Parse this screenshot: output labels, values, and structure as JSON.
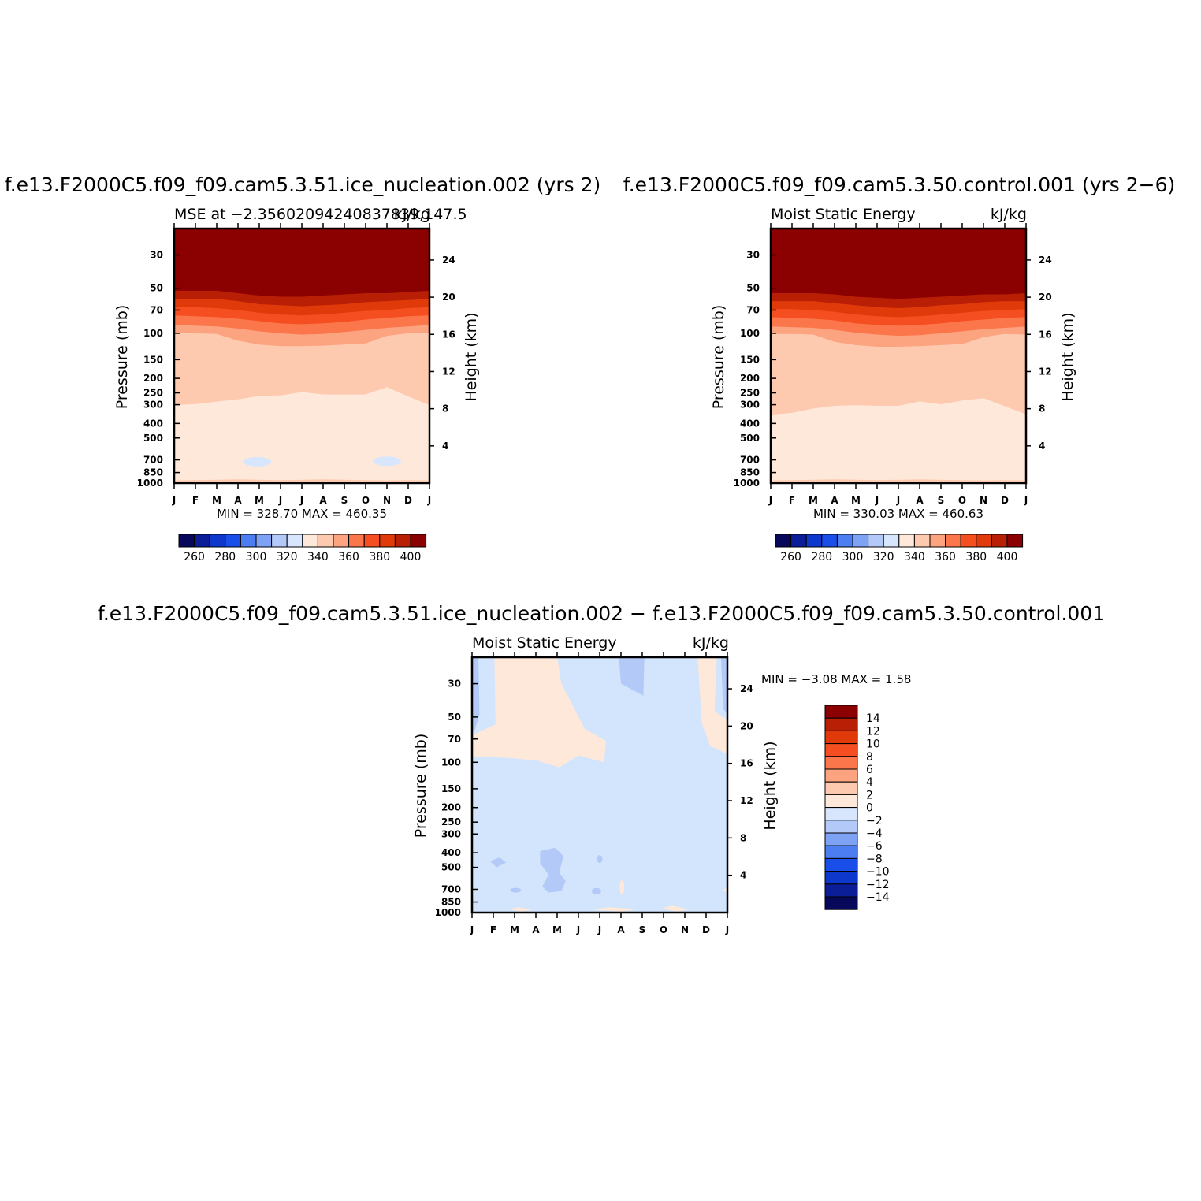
{
  "chart_data": [
    {
      "type": "heatmap",
      "name": "panel-test",
      "title": "f.e13.F2000C5.f09_f09.cam5.3.51.ice_nucleation.002 (yrs 2)",
      "subtitle_left": "MSE at −2.35602094240837839,147.5",
      "subtitle_right": "kJ/kg",
      "ylabel": "Pressure (mb)",
      "ylabel_right": "Height (km)",
      "x_ticks": [
        "J",
        "F",
        "M",
        "A",
        "M",
        "J",
        "J",
        "A",
        "S",
        "O",
        "N",
        "D",
        "J"
      ],
      "p_ticks": [
        30,
        50,
        70,
        100,
        150,
        200,
        250,
        300,
        400,
        500,
        700,
        850,
        1000
      ],
      "z_ticks": [
        24,
        20,
        16,
        12,
        8,
        4
      ],
      "min_max_text": "MIN =  328.70  MAX =  460.35",
      "levels": [
        260,
        270,
        280,
        290,
        300,
        310,
        320,
        330,
        340,
        350,
        360,
        370,
        380,
        390,
        400
      ],
      "colorbar_labels": [
        "260",
        "280",
        "300",
        "320",
        "340",
        "360",
        "380",
        "400"
      ],
      "boundaries_mb": [
        {
          "name": "400-410",
          "values": [
            52,
            52,
            52,
            54,
            56,
            57,
            57,
            56,
            55,
            54,
            54,
            53,
            52
          ]
        },
        {
          "name": "390-400",
          "values": [
            59,
            59,
            59,
            61,
            64,
            65,
            66,
            65,
            64,
            62,
            61,
            60,
            59
          ]
        },
        {
          "name": "380-390",
          "values": [
            67,
            67,
            68,
            70,
            73,
            75,
            76,
            75,
            73,
            71,
            70,
            68,
            67
          ]
        },
        {
          "name": "370-380",
          "values": [
            76,
            77,
            78,
            80,
            83,
            86,
            87,
            86,
            84,
            81,
            79,
            77,
            76
          ]
        },
        {
          "name": "360-370",
          "values": [
            88,
            89,
            90,
            93,
            97,
            100,
            102,
            101,
            98,
            95,
            92,
            90,
            88
          ]
        },
        {
          "name": "350-360",
          "values": [
            100,
            100,
            101,
            112,
            119,
            122,
            122,
            121,
            119,
            117,
            104,
            100,
            100
          ]
        },
        {
          "name": "340-350",
          "values": [
            302,
            297,
            286,
            276,
            262,
            260,
            247,
            256,
            257,
            256,
            229,
            264,
            302
          ]
        },
        {
          "name": "330-340",
          "values": [
            960,
            955,
            950,
            945,
            950,
            955,
            950,
            945,
            950,
            955,
            960,
            955,
            960
          ]
        }
      ],
      "blobs_320_330": [
        {
          "month": 3.9,
          "p": 720
        },
        {
          "month": 10.0,
          "p": 715
        }
      ]
    },
    {
      "type": "heatmap",
      "name": "panel-control",
      "title": "f.e13.F2000C5.f09_f09.cam5.3.50.control.001 (yrs 2−6)",
      "subtitle_left": "Moist Static Energy",
      "subtitle_right": "kJ/kg",
      "ylabel": "Pressure (mb)",
      "ylabel_right": "Height (km)",
      "x_ticks": [
        "J",
        "F",
        "M",
        "A",
        "M",
        "J",
        "J",
        "A",
        "S",
        "O",
        "N",
        "D",
        "J"
      ],
      "p_ticks": [
        30,
        50,
        70,
        100,
        150,
        200,
        250,
        300,
        400,
        500,
        700,
        850,
        1000
      ],
      "z_ticks": [
        24,
        20,
        16,
        12,
        8,
        4
      ],
      "min_max_text": "MIN =  330.03  MAX =  460.63",
      "levels": [
        260,
        270,
        280,
        290,
        300,
        310,
        320,
        330,
        340,
        350,
        360,
        370,
        380,
        390,
        400
      ],
      "colorbar_labels": [
        "260",
        "280",
        "300",
        "320",
        "340",
        "360",
        "380",
        "400"
      ],
      "boundaries_mb": [
        {
          "name": "400-410",
          "values": [
            54,
            54,
            54,
            55,
            57,
            58,
            59,
            58,
            57,
            56,
            55,
            55,
            54
          ]
        },
        {
          "name": "390-400",
          "values": [
            61,
            61,
            61,
            63,
            65,
            67,
            68,
            67,
            65,
            64,
            62,
            61,
            61
          ]
        },
        {
          "name": "380-390",
          "values": [
            69,
            69,
            70,
            72,
            75,
            77,
            78,
            77,
            75,
            73,
            71,
            70,
            69
          ]
        },
        {
          "name": "370-380",
          "values": [
            78,
            79,
            80,
            82,
            86,
            88,
            89,
            88,
            86,
            83,
            81,
            79,
            78
          ]
        },
        {
          "name": "360-370",
          "values": [
            90,
            91,
            92,
            95,
            99,
            102,
            104,
            103,
            100,
            97,
            94,
            92,
            90
          ]
        },
        {
          "name": "350-360",
          "values": [
            101,
            101,
            102,
            114,
            120,
            123,
            123,
            122,
            120,
            118,
            106,
            101,
            102
          ]
        },
        {
          "name": "340-350",
          "values": [
            350,
            340,
            318,
            305,
            302,
            305,
            305,
            285,
            298,
            281,
            271,
            307,
            348
          ]
        },
        {
          "name": "330-340",
          "values": [
            960,
            955,
            950,
            945,
            950,
            955,
            950,
            945,
            950,
            955,
            960,
            955,
            960
          ]
        }
      ]
    },
    {
      "type": "heatmap",
      "name": "panel-diff",
      "title": "f.e13.F2000C5.f09_f09.cam5.3.51.ice_nucleation.002 − f.e13.F2000C5.f09_f09.cam5.3.50.control.001",
      "subtitle_left": "Moist Static Energy",
      "subtitle_right": "kJ/kg",
      "ylabel": "Pressure (mb)",
      "ylabel_right": "Height (km)",
      "x_ticks": [
        "J",
        "F",
        "M",
        "A",
        "M",
        "J",
        "J",
        "A",
        "S",
        "O",
        "N",
        "D",
        "J"
      ],
      "p_ticks": [
        30,
        50,
        70,
        100,
        150,
        200,
        250,
        300,
        400,
        500,
        700,
        850,
        1000
      ],
      "z_ticks": [
        24,
        20,
        16,
        12,
        8,
        4
      ],
      "min_max_text": "MIN =   −3.08  MAX =    1.58",
      "levels": [
        -14,
        -12,
        -10,
        -8,
        -6,
        -4,
        -2,
        0,
        2,
        4,
        6,
        8,
        10,
        12,
        14
      ],
      "colorbar_labels": [
        "14",
        "12",
        "10",
        "8",
        "6",
        "4",
        "2",
        "0",
        "−2",
        "−4",
        "−6",
        "−8",
        "−10",
        "−12",
        "−14"
      ]
    }
  ],
  "colors": {
    "cmap": [
      "#08085a",
      "#0b1e98",
      "#0e37cc",
      "#1a4ee9",
      "#4c7ef2",
      "#7ea2f4",
      "#b3caf9",
      "#d7e6fd",
      "#fee8d9",
      "#fdcab0",
      "#fca380",
      "#fc764c",
      "#f54e20",
      "#e03a0a",
      "#b91f04",
      "#8b0000"
    ],
    "diff_neg": "#d2e5fc",
    "diff_neg2": "#b3caf9",
    "diff_pos": "#fee8d9"
  }
}
